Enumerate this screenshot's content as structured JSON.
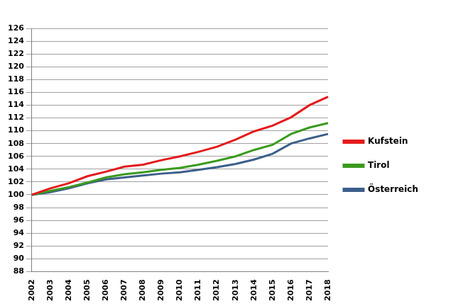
{
  "chart_data": {
    "type": "line",
    "categories": [
      "2002",
      "2003",
      "2004",
      "2005",
      "2006",
      "2007",
      "2008",
      "2009",
      "2010",
      "2011",
      "2012",
      "2013",
      "2014",
      "2015",
      "2016",
      "2017",
      "2018"
    ],
    "series": [
      {
        "name": "Kufstein",
        "color": "#e41a1c",
        "marker": "none",
        "line_style": "solid",
        "values": [
          100,
          101.0,
          101.8,
          102.9,
          103.6,
          104.4,
          104.7,
          105.4,
          106.0,
          106.7,
          107.5,
          108.6,
          109.9,
          110.8,
          112.1,
          114.0,
          115.3
        ]
      },
      {
        "name": "Tirol",
        "color": "#3a9a1e",
        "marker": "none",
        "line_style": "solid",
        "values": [
          100,
          100.6,
          101.2,
          101.9,
          102.7,
          103.2,
          103.5,
          103.9,
          104.2,
          104.7,
          105.3,
          106.0,
          107.0,
          107.8,
          109.5,
          110.5,
          111.2
        ]
      },
      {
        "name": "Österreich",
        "color": "#3b5f8a",
        "marker": "none",
        "line_style": "solid",
        "values": [
          100,
          100.4,
          101.0,
          101.8,
          102.4,
          102.7,
          103.0,
          103.3,
          103.5,
          103.9,
          104.3,
          104.8,
          105.5,
          106.4,
          108.0,
          108.8,
          109.5
        ]
      }
    ],
    "ylim": [
      88,
      126
    ],
    "yticks": [
      88,
      90,
      92,
      94,
      96,
      98,
      100,
      102,
      104,
      106,
      108,
      110,
      112,
      114,
      116,
      118,
      120,
      122,
      124,
      126
    ],
    "grid": true,
    "legend": "right"
  }
}
